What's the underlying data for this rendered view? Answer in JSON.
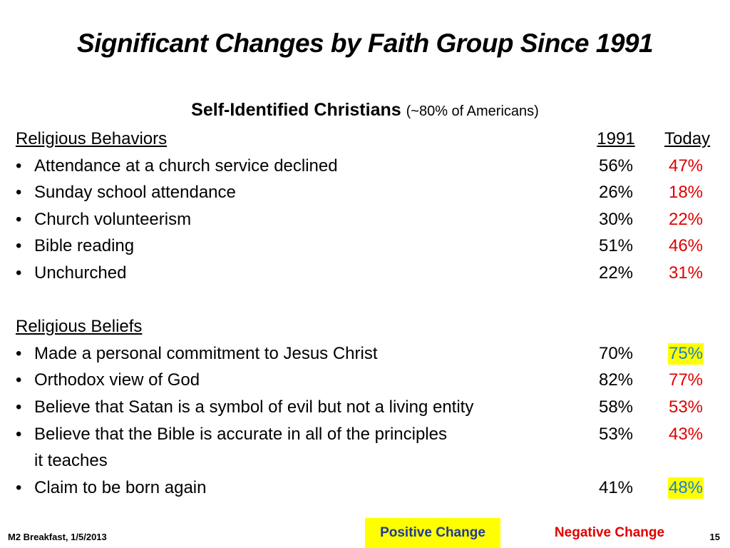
{
  "title": "Significant Changes by Faith Group Since 1991",
  "subtitle": {
    "main": "Self-Identified Christians",
    "note": "(~80% of Americans)"
  },
  "columns": {
    "year": "1991",
    "today": "Today"
  },
  "behaviors": {
    "heading": "Religious Behaviors",
    "items": [
      {
        "label": "Attendance at a church service declined",
        "v1991": "56%",
        "today": "47%",
        "change": "negative"
      },
      {
        "label": "Sunday school attendance",
        "v1991": "26%",
        "today": "18%",
        "change": "negative"
      },
      {
        "label": "Church  volunteerism",
        "v1991": "30%",
        "today": "22%",
        "change": "negative"
      },
      {
        "label": "Bible reading",
        "v1991": "51%",
        "today": "46%",
        "change": "negative"
      },
      {
        "label": "Unchurched",
        "v1991": "22%",
        "today": "31%",
        "change": "negative"
      }
    ]
  },
  "beliefs": {
    "heading": "Religious Beliefs",
    "items": [
      {
        "label": "Made a personal commitment to Jesus Christ",
        "v1991": "70%",
        "today": "75%",
        "change": "positive"
      },
      {
        "label": "Orthodox view of God",
        "v1991": "82%",
        "today": "77%",
        "change": "negative"
      },
      {
        "label": "Believe that Satan is a symbol of evil but not a living entity",
        "v1991": "58%",
        "today": "53%",
        "change": "negative"
      },
      {
        "label": "Believe that the Bible is accurate in all of the principles",
        "continuation": "it teaches",
        "v1991": "53%",
        "today": "43%",
        "change": "negative"
      },
      {
        "label": "Claim to be born again",
        "v1991": "41%",
        "today": "48%",
        "change": "positive"
      }
    ]
  },
  "legend": {
    "positive": "Positive Change",
    "negative": "Negative Change"
  },
  "footer": {
    "left": "M2 Breakfast, 1/5/2013",
    "page": "15"
  },
  "colors": {
    "negative": "#e00000",
    "positive_text": "#1a7fd0",
    "positive_highlight": "#ffff00"
  }
}
